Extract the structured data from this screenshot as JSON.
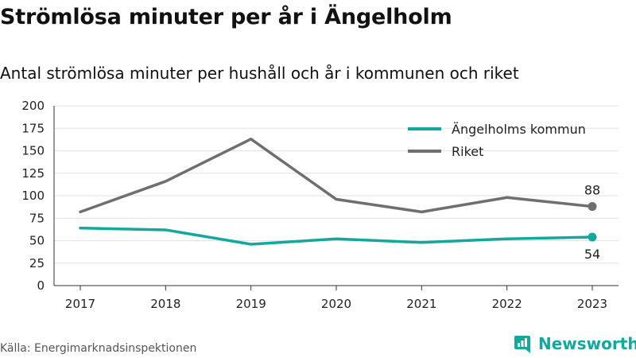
{
  "colors": {
    "angelholm": "#13a89e",
    "riket": "#6e6e73",
    "grid": "#e3e3e3",
    "brand": "#13a89e"
  },
  "chart_data": {
    "type": "line",
    "title": "Strömlösa minuter per år i Ängelholm",
    "subtitle": "Antal strömlösa minuter per hushåll och år i kommunen och riket",
    "categories": [
      "2017",
      "2018",
      "2019",
      "2020",
      "2021",
      "2022",
      "2023"
    ],
    "yticks": [
      "0",
      "25",
      "50",
      "75",
      "100",
      "125",
      "150",
      "175",
      "200"
    ],
    "ylim": [
      0,
      200
    ],
    "grid": true,
    "legend_position": "top-right",
    "series": [
      {
        "name": "Ängelholms kommun",
        "color": "#13a89e",
        "values": [
          64,
          62,
          46,
          52,
          48,
          52,
          54
        ],
        "end_label": "54"
      },
      {
        "name": "Riket",
        "color": "#6e6e73",
        "values": [
          82,
          116,
          163,
          96,
          82,
          98,
          88
        ],
        "end_label": "88"
      }
    ]
  },
  "footer": {
    "source": "Källa: Energimarknadsinspektionen",
    "brand": "Newsworthy",
    "brand_icon": "newsworthy-logo-icon"
  }
}
